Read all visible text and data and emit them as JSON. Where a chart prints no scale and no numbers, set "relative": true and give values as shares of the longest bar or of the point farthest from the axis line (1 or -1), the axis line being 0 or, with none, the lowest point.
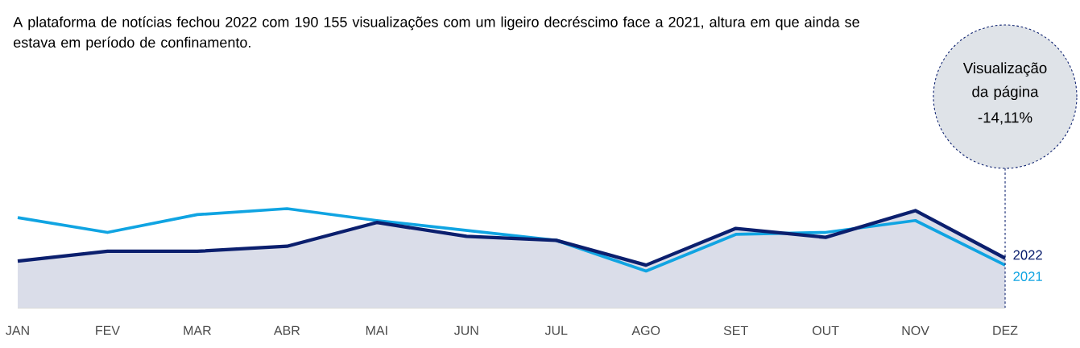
{
  "chart_data": {
    "type": "line",
    "relative": true,
    "title": "A plataforma de notícias fechou 2022 com 190 155 visualizações com um ligeiro decréscimo face a 2021, altura em que ainda se estava em período de confinamento.",
    "annotations": [
      "Visualização da página",
      "-14,11%"
    ],
    "categories": [
      "JAN",
      "FEV",
      "MAR",
      "ABR",
      "MAI",
      "JUN",
      "JUL",
      "AGO",
      "SET",
      "OUT",
      "NOV",
      "DEZ"
    ],
    "series": [
      {
        "name": "2022",
        "type": "area",
        "color": "#0b1f6e",
        "values": [
          0.47,
          0.57,
          0.57,
          0.62,
          0.86,
          0.72,
          0.68,
          0.43,
          0.8,
          0.71,
          0.98,
          0.5
        ]
      },
      {
        "name": "2021",
        "color": "#10a4e2",
        "values": [
          0.91,
          0.76,
          0.94,
          1.0,
          0.88,
          0.78,
          0.68,
          0.37,
          0.74,
          0.76,
          0.88,
          0.43
        ]
      }
    ]
  }
}
